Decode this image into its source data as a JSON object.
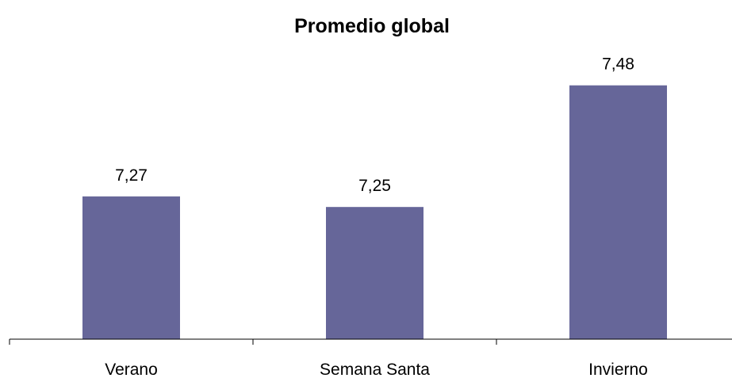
{
  "chart_data": {
    "type": "bar",
    "title": "Promedio global",
    "xlabel": "",
    "ylabel": "",
    "categories": [
      "Verano",
      "Semana Santa",
      "Invierno"
    ],
    "values": [
      7.27,
      7.25,
      7.48
    ],
    "value_labels": [
      "7,27",
      "7,25",
      "7,48"
    ],
    "ylim": [
      7.0,
      7.55
    ],
    "grid": false,
    "legend": "none",
    "bar_color": "#666699"
  }
}
